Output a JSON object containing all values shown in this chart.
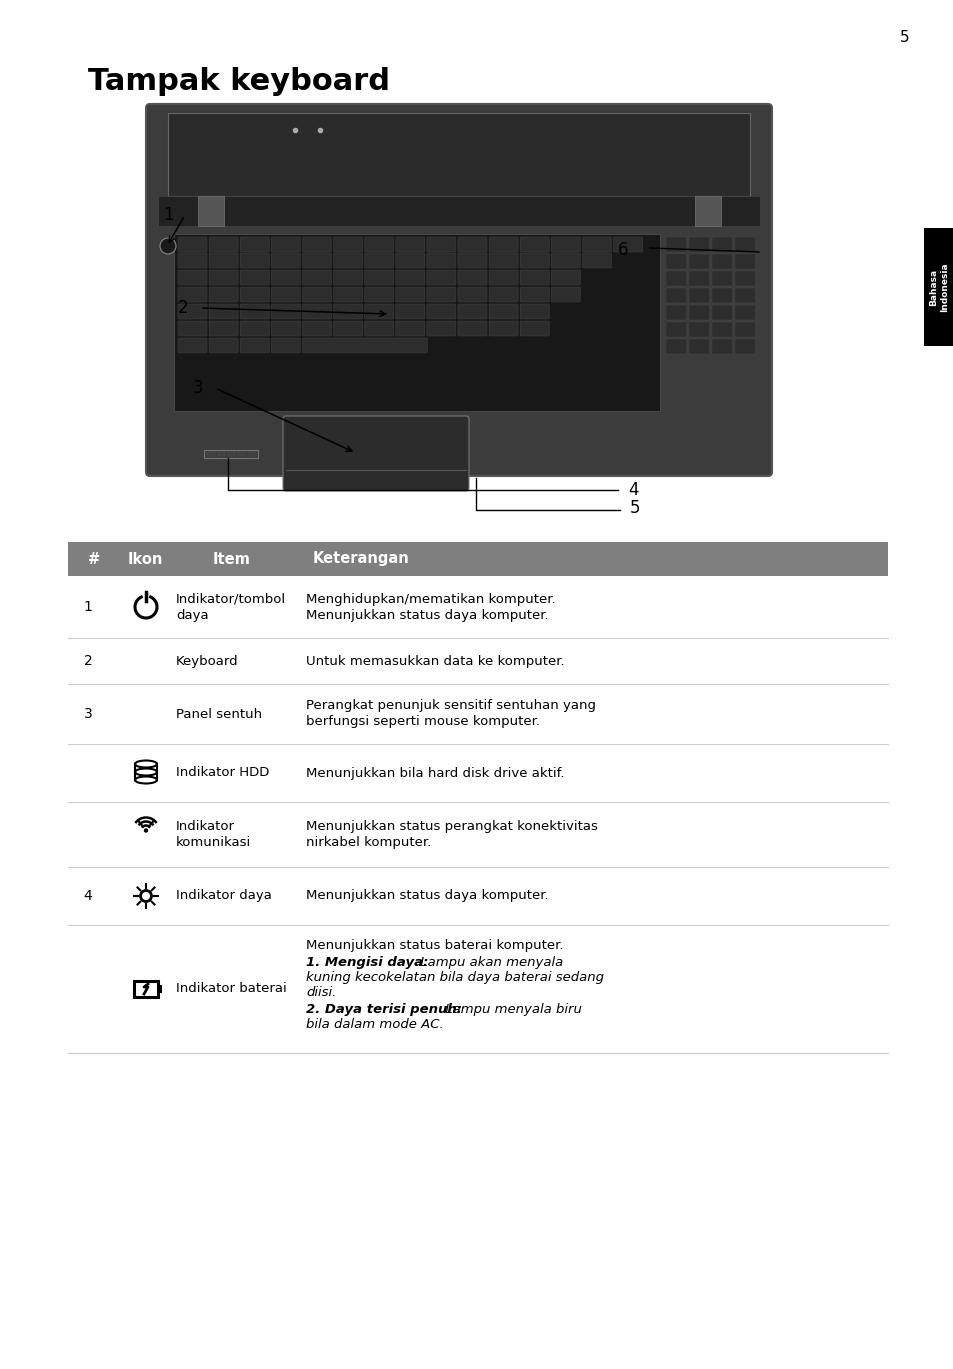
{
  "page_number": "5",
  "title": "Tampak keyboard",
  "sidebar_line1": "Bahasa",
  "sidebar_line2": "Indonesia",
  "sidebar_bg": "#000000",
  "sidebar_text_color": "#ffffff",
  "table_header": [
    "#",
    "Ikon",
    "Item",
    "Keterangan"
  ],
  "table_header_bg": "#7f7f7f",
  "table_header_text_color": "#ffffff",
  "bg_color": "#ffffff",
  "text_color": "#000000",
  "divider_color": "#cccccc",
  "font_size_title": 22,
  "font_size_body": 9.5,
  "font_size_page_num": 11
}
